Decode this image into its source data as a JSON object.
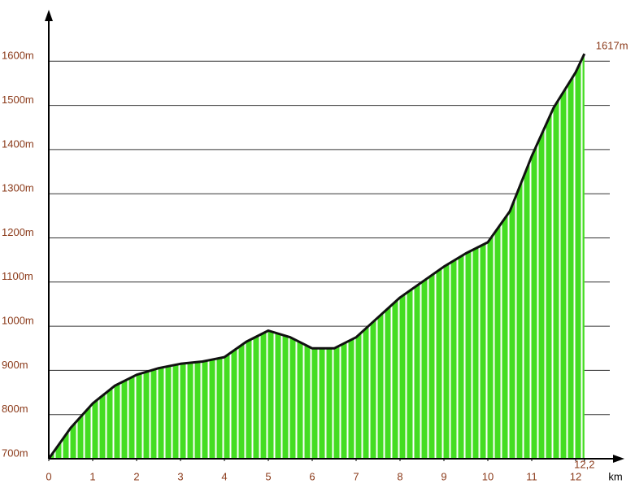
{
  "chart_data": {
    "type": "area",
    "x": [
      0,
      0.5,
      1,
      1.5,
      2,
      2.5,
      3,
      3.5,
      4,
      4.5,
      5,
      5.5,
      6,
      6.5,
      7,
      7.5,
      8,
      8.5,
      9,
      9.5,
      10,
      10.5,
      11,
      11.5,
      12,
      12.2
    ],
    "values": [
      700,
      770,
      825,
      865,
      890,
      905,
      915,
      920,
      930,
      965,
      990,
      975,
      950,
      950,
      975,
      1020,
      1065,
      1100,
      1135,
      1165,
      1190,
      1260,
      1385,
      1495,
      1575,
      1617
    ],
    "color": "#44dd22",
    "xlabel": "km",
    "xlim": [
      0,
      13
    ],
    "ylim": [
      700,
      1700
    ],
    "xticks": [
      0,
      1,
      2,
      3,
      4,
      5,
      6,
      7,
      8,
      9,
      10,
      11,
      12,
      {
        "value": 12.2,
        "label": "12,2"
      }
    ],
    "yticks": [
      {
        "value": 700,
        "label": "700m"
      },
      {
        "value": 800,
        "label": "800m"
      },
      {
        "value": 900,
        "label": "900m"
      },
      {
        "value": 1000,
        "label": "1000m"
      },
      {
        "value": 1100,
        "label": "1100m"
      },
      {
        "value": 1200,
        "label": "1200m"
      },
      {
        "value": 1300,
        "label": "1300m"
      },
      {
        "value": 1400,
        "label": "1400m"
      },
      {
        "value": 1500,
        "label": "1500m"
      },
      {
        "value": 1600,
        "label": "1600m"
      }
    ],
    "grid": true,
    "annotations": [
      {
        "text": "1617m",
        "x": 12.2,
        "y": 1617
      }
    ]
  }
}
